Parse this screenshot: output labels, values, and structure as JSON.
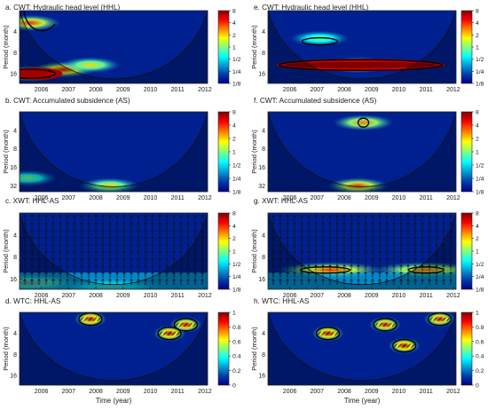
{
  "panels": [
    {
      "id": "a",
      "title": "a. CWT: Hydraulic head level (HHL)",
      "kind": "cwt",
      "yticks": [
        "4",
        "8",
        "16"
      ],
      "xticks": [
        "2006",
        "2007",
        "2008",
        "2009",
        "2010",
        "2011",
        "2012"
      ],
      "ylabel": "Period (month)",
      "xlabel": "",
      "colorbar": {
        "ticks": [
          "8",
          "4",
          "2",
          "1",
          "1/2",
          "1/4",
          "1/8"
        ]
      }
    },
    {
      "id": "b",
      "title": "b. CWT: Accumulated subsidence (AS)",
      "kind": "cwt",
      "yticks": [
        "4",
        "8",
        "16",
        "32"
      ],
      "xticks": [
        "2006",
        "2007",
        "2008",
        "2009",
        "2010",
        "2011",
        "2012"
      ],
      "ylabel": "Period (month)",
      "xlabel": "",
      "colorbar": {
        "ticks": [
          "8",
          "4",
          "2",
          "1",
          "1/2",
          "1/4",
          "1/8"
        ]
      }
    },
    {
      "id": "c",
      "title": "c. XWT: HHL-AS",
      "kind": "xwt",
      "yticks": [
        "4",
        "8",
        "16"
      ],
      "xticks": [
        "2006",
        "2007",
        "2008",
        "2009",
        "2010",
        "2011",
        "2012"
      ],
      "ylabel": "Period (month)",
      "xlabel": "",
      "colorbar": {
        "ticks": [
          "8",
          "4",
          "2",
          "1",
          "1/2",
          "1/4",
          "1/8"
        ]
      }
    },
    {
      "id": "d",
      "title": "d. WTC: HHL-AS",
      "kind": "wtc",
      "yticks": [
        "4",
        "8",
        "16"
      ],
      "xticks": [
        "2006",
        "2007",
        "2008",
        "2009",
        "2010",
        "2011",
        "2012"
      ],
      "ylabel": "Period (month)",
      "xlabel": "Time (year)",
      "colorbar": {
        "ticks": [
          "1",
          "0.8",
          "0.6",
          "0.4",
          "0.2",
          "0"
        ]
      }
    },
    {
      "id": "e",
      "title": "e. CWT: Hydraulic head level (HHL)",
      "kind": "cwt",
      "yticks": [
        "4",
        "8",
        "16"
      ],
      "xticks": [
        "2006",
        "2007",
        "2008",
        "2009",
        "2010",
        "2011",
        "2012"
      ],
      "ylabel": "Period (month)",
      "xlabel": "",
      "colorbar": {
        "ticks": [
          "8",
          "4",
          "2",
          "1",
          "1/2",
          "1/4",
          "1/8"
        ]
      }
    },
    {
      "id": "f",
      "title": "f. CWT: Accumulated subsidence (AS)",
      "kind": "cwt",
      "yticks": [
        "4",
        "8",
        "16",
        "32"
      ],
      "xticks": [
        "2006",
        "2007",
        "2008",
        "2009",
        "2010",
        "2011",
        "2012"
      ],
      "ylabel": "Period (month)",
      "xlabel": "",
      "colorbar": {
        "ticks": [
          "8",
          "4",
          "2",
          "1",
          "1/2",
          "1/4",
          "1/8"
        ]
      }
    },
    {
      "id": "g",
      "title": "g. XWT: HHL-AS",
      "kind": "xwt",
      "yticks": [
        "4",
        "8",
        "16"
      ],
      "xticks": [
        "2006",
        "2007",
        "2008",
        "2009",
        "2010",
        "2011",
        "2012"
      ],
      "ylabel": "Period (month)",
      "xlabel": "",
      "colorbar": {
        "ticks": [
          "8",
          "4",
          "2",
          "1",
          "1/2",
          "1/4",
          "1/8"
        ]
      }
    },
    {
      "id": "h",
      "title": "h. WTC: HHL-AS",
      "kind": "wtc",
      "yticks": [
        "4",
        "8",
        "16"
      ],
      "xticks": [
        "2006",
        "2007",
        "2008",
        "2009",
        "2010",
        "2011",
        "2012"
      ],
      "ylabel": "Period (month)",
      "xlabel": "Time (year)",
      "colorbar": {
        "ticks": [
          "1",
          "0.8",
          "0.6",
          "0.4",
          "0.2",
          "0"
        ]
      }
    }
  ],
  "chart_data": [
    {
      "type": "heatmap",
      "panel": "a",
      "title": "a. CWT: Hydraulic head level (HHL)",
      "xlabel": "",
      "ylabel": "Period (month)",
      "xlim": [
        2005.2,
        2012.1
      ],
      "period_ticks": [
        4,
        8,
        16
      ],
      "color_scale": "log2 power 1/8 to 8",
      "regions": [
        {
          "t": 2005.6,
          "period": 16,
          "power": 6
        },
        {
          "t": 2006.8,
          "period": 14,
          "power": 5
        },
        {
          "t": 2007.8,
          "period": 12,
          "power": 2
        },
        {
          "t": 2005.6,
          "period": 3,
          "power": 4
        }
      ]
    },
    {
      "type": "heatmap",
      "panel": "b",
      "title": "b. CWT: Accumulated subsidence (AS)",
      "xlabel": "",
      "ylabel": "Period (month)",
      "xlim": [
        2005.2,
        2012.1
      ],
      "period_ticks": [
        4,
        8,
        16,
        32
      ],
      "color_scale": "log2 power 1/8 to 8",
      "regions": [
        {
          "t": 2005.5,
          "period": 24,
          "power": 1
        },
        {
          "t": 2008.5,
          "period": 32,
          "power": 2
        }
      ]
    },
    {
      "type": "heatmap",
      "panel": "c",
      "title": "c. XWT: HHL-AS",
      "xlabel": "",
      "ylabel": "Period (month)",
      "xlim": [
        2005.2,
        2012.1
      ],
      "period_ticks": [
        4,
        8,
        16
      ],
      "color_scale": "log2 power 1/8 to 8",
      "regions": [
        {
          "t": 2005.5,
          "period": 18,
          "power": 4
        },
        {
          "t": 2008.5,
          "period": 20,
          "power": 1
        }
      ]
    },
    {
      "type": "heatmap",
      "panel": "d",
      "title": "d. WTC: HHL-AS",
      "xlabel": "Time (year)",
      "ylabel": "Period (month)",
      "xlim": [
        2005.2,
        2012.1
      ],
      "period_ticks": [
        4,
        8,
        16
      ],
      "color_scale": "coherence 0 to 1",
      "regions": [
        {
          "t": 2007.8,
          "period": 2.5,
          "coherence": 0.95
        },
        {
          "t": 2010.7,
          "period": 4,
          "coherence": 0.95
        },
        {
          "t": 2011.3,
          "period": 3,
          "coherence": 0.9
        }
      ]
    },
    {
      "type": "heatmap",
      "panel": "e",
      "title": "e. CWT: Hydraulic head level (HHL)",
      "xlabel": "",
      "ylabel": "Period (month)",
      "xlim": [
        2005.2,
        2012.1
      ],
      "period_ticks": [
        4,
        8,
        16
      ],
      "color_scale": "log2 power 1/8 to 8",
      "regions": [
        {
          "t": 2008.5,
          "period": 12,
          "power": 8
        },
        {
          "t": 2007.1,
          "period": 5,
          "power": 1
        }
      ]
    },
    {
      "type": "heatmap",
      "panel": "f",
      "title": "f. CWT: Accumulated subsidence (AS)",
      "xlabel": "",
      "ylabel": "Period (month)",
      "xlim": [
        2005.2,
        2012.1
      ],
      "period_ticks": [
        4,
        8,
        16,
        32
      ],
      "color_scale": "log2 power 1/8 to 8",
      "regions": [
        {
          "t": 2008.7,
          "period": 3,
          "power": 3
        },
        {
          "t": 2008.5,
          "period": 32,
          "power": 4
        }
      ]
    },
    {
      "type": "heatmap",
      "panel": "g",
      "title": "g. XWT: HHL-AS",
      "xlabel": "",
      "ylabel": "Period (month)",
      "xlim": [
        2005.2,
        2012.1
      ],
      "period_ticks": [
        4,
        8,
        16
      ],
      "color_scale": "log2 power 1/8 to 8",
      "regions": [
        {
          "t": 2007.5,
          "period": 12,
          "power": 4
        },
        {
          "t": 2011.0,
          "period": 12,
          "power": 3
        }
      ]
    },
    {
      "type": "heatmap",
      "panel": "h",
      "title": "h. WTC: HHL-AS",
      "xlabel": "Time (year)",
      "ylabel": "Period (month)",
      "xlim": [
        2005.2,
        2012.1
      ],
      "period_ticks": [
        4,
        8,
        16
      ],
      "color_scale": "coherence 0 to 1",
      "regions": [
        {
          "t": 2007.4,
          "period": 4,
          "coherence": 0.95
        },
        {
          "t": 2009.5,
          "period": 3,
          "coherence": 0.9
        },
        {
          "t": 2010.2,
          "period": 6,
          "coherence": 0.95
        },
        {
          "t": 2011.5,
          "period": 2.5,
          "coherence": 0.9
        }
      ]
    }
  ]
}
